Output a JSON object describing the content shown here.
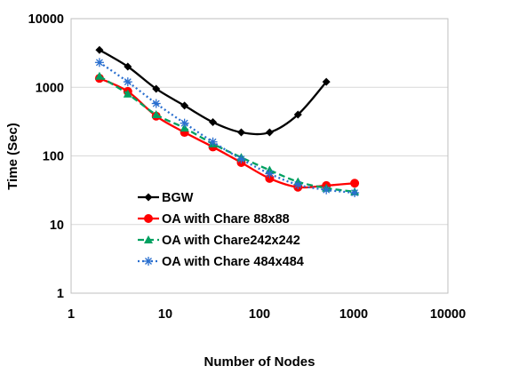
{
  "chart_data": {
    "type": "line",
    "xlabel": "Number of Nodes",
    "ylabel": "Time (Sec)",
    "xscale": "log",
    "yscale": "log",
    "xlim": [
      1,
      10000
    ],
    "ylim": [
      1,
      10000
    ],
    "x_ticks": [
      "1",
      "10",
      "100",
      "1000",
      "10000"
    ],
    "y_ticks": [
      "1",
      "10",
      "100",
      "1000",
      "10000"
    ],
    "grid": "horizontal major gridlines",
    "legend_position": "lower-left inside plot",
    "series": [
      {
        "name": "BGW",
        "color": "#000000",
        "line_style": "solid",
        "marker": "diamond",
        "x": [
          2,
          4,
          8,
          16,
          32,
          64,
          128,
          256,
          512
        ],
        "y": [
          3500,
          2000,
          950,
          540,
          310,
          220,
          220,
          400,
          1200
        ]
      },
      {
        "name": "OA with Chare 88x88",
        "color": "#ff0000",
        "line_style": "solid",
        "marker": "circle",
        "x": [
          2,
          4,
          8,
          16,
          32,
          64,
          128,
          256,
          512,
          1024
        ],
        "y": [
          1350,
          870,
          380,
          220,
          135,
          80,
          47,
          35,
          37,
          40
        ]
      },
      {
        "name": "OA with Chare242x242",
        "color": "#00a060",
        "line_style": "dashed",
        "marker": "triangle",
        "x": [
          2,
          4,
          8,
          16,
          32,
          64,
          128,
          256,
          512,
          1024
        ],
        "y": [
          1450,
          800,
          400,
          255,
          150,
          95,
          62,
          42,
          34,
          30
        ]
      },
      {
        "name": "OA with Chare 484x484",
        "color": "#2a6fcf",
        "line_style": "dotted",
        "marker": "star",
        "x": [
          2,
          4,
          8,
          16,
          32,
          64,
          128,
          256,
          512,
          1024
        ],
        "y": [
          2300,
          1200,
          580,
          300,
          160,
          90,
          55,
          38,
          32,
          29
        ]
      }
    ]
  }
}
